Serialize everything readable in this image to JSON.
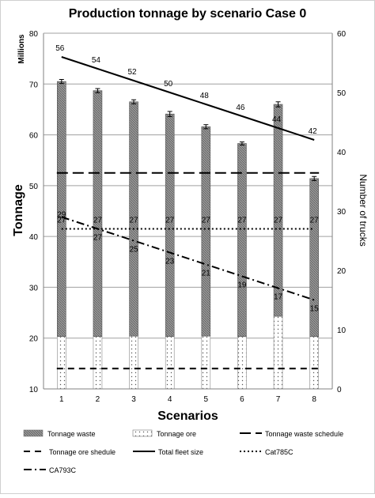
{
  "chart_data": {
    "type": "bar",
    "title": "Production tonnage by scenario Case  0",
    "xlabel": "Scenarios",
    "ylabel": "Tonnage",
    "y_unit": "Millions",
    "y2label": "Number of trucks",
    "ylim": [
      10,
      80
    ],
    "y2lim": [
      0,
      60
    ],
    "y_ticks": [
      "10",
      "20",
      "30",
      "40",
      "50",
      "60",
      "70",
      "80"
    ],
    "y2_ticks": [
      "0",
      "10",
      "20",
      "30",
      "40",
      "50",
      "60"
    ],
    "categories": [
      "1",
      "2",
      "3",
      "4",
      "5",
      "6",
      "7",
      "8"
    ],
    "grid": true,
    "legend_position": "bottom",
    "bar_series": [
      {
        "name": "Tonnage waste",
        "values": [
          70.5,
          68.7,
          66.5,
          64.1,
          61.6,
          58.3,
          66.0,
          51.4
        ],
        "error": [
          0.4,
          0.4,
          0.4,
          0.5,
          0.4,
          0.3,
          0.5,
          0.4
        ]
      },
      {
        "name": "Tonnage ore",
        "values": [
          20.3,
          20.3,
          20.4,
          20.3,
          20.4,
          20.3,
          24.3,
          20.3
        ]
      }
    ],
    "reference_lines": [
      {
        "name": "Tonnage waste schedule",
        "axis": "left",
        "value": 52.5,
        "style": "longdash"
      },
      {
        "name": "Tonnage ore shedule",
        "axis": "left",
        "value": 14.0,
        "style": "dash"
      }
    ],
    "line_series": [
      {
        "name": "Total fleet size",
        "axis": "right",
        "values": [
          56,
          54,
          52,
          50,
          48,
          46,
          44,
          42
        ],
        "style": "solid"
      },
      {
        "name": "Cat785C",
        "axis": "right",
        "values": [
          27,
          27,
          27,
          27,
          27,
          27,
          27,
          27
        ],
        "style": "dot"
      },
      {
        "name": "CA793C",
        "axis": "right",
        "values": [
          29,
          27,
          25,
          23,
          21,
          19,
          17,
          15
        ],
        "style": "dashdot"
      }
    ],
    "line_labels": [
      {
        "series": "Total fleet size",
        "labels": [
          "56",
          "54",
          "52",
          "50",
          "48",
          "46",
          "44",
          "42"
        ]
      },
      {
        "series": "Cat785C",
        "labels": [
          "27",
          "27",
          "27",
          "27",
          "27",
          "27",
          "27",
          "27"
        ]
      },
      {
        "series": "CA793C",
        "labels": [
          "29",
          "27",
          "25",
          "23",
          "21",
          "19",
          "17",
          "15"
        ]
      }
    ],
    "colors": {
      "waste_bar": "#9a9a9a",
      "ore_bar": "#ffffff",
      "lines": "#000000",
      "grid": "#a0a0a0"
    }
  }
}
